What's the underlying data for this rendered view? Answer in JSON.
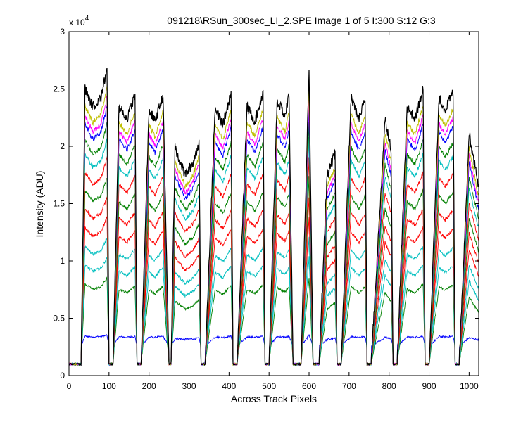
{
  "chart_data": {
    "type": "line",
    "title": "091218\\RSun_300sec_LI_2.SPE  Image 1 of 5  I:300  S:12  G:3",
    "xlabel": "Across Track Pixels",
    "ylabel": "Intensity (ADU)",
    "exponent_label": "x 10",
    "exponent_power": "4",
    "xlim": [
      0,
      1024
    ],
    "ylim": [
      0,
      30000
    ],
    "x_ticks": [
      0,
      100,
      200,
      300,
      400,
      500,
      600,
      700,
      800,
      900,
      1000
    ],
    "y_ticks": [
      0,
      5000,
      10000,
      15000,
      20000,
      25000,
      30000
    ],
    "x_tick_labels": [
      "0",
      "100",
      "200",
      "300",
      "400",
      "500",
      "600",
      "700",
      "800",
      "900",
      "1000"
    ],
    "y_tick_labels": [
      "0",
      "0.5",
      "1",
      "1.5",
      "2",
      "2.5",
      "3"
    ],
    "grid": false,
    "legend": "none",
    "baseline": 1000,
    "envelope": {
      "x": [
        0,
        30,
        40,
        60,
        80,
        95,
        100,
        110,
        125,
        145,
        165,
        170,
        180,
        200,
        215,
        235,
        250,
        255,
        265,
        290,
        310,
        325,
        330,
        340,
        365,
        385,
        405,
        410,
        420,
        445,
        465,
        485,
        490,
        500,
        520,
        540,
        550,
        560,
        580,
        600,
        610,
        625,
        645,
        665,
        670,
        680,
        705,
        725,
        740,
        745,
        755,
        790,
        805,
        810,
        820,
        845,
        865,
        885,
        890,
        900,
        925,
        940,
        960,
        965,
        975,
        1000,
        1024
      ],
      "value": [
        0,
        0,
        0.93,
        0.87,
        0.9,
        1,
        0,
        0,
        0.87,
        0.83,
        0.91,
        0,
        0,
        0.86,
        0.82,
        0.91,
        0,
        0,
        0.73,
        0.64,
        0.68,
        0.75,
        0,
        0,
        0.86,
        0.81,
        0.92,
        0,
        0,
        0.87,
        0.82,
        0.92,
        0,
        0,
        0.89,
        0.84,
        0.91,
        0,
        0,
        1,
        0,
        0,
        0.64,
        0.71,
        0,
        0,
        0.9,
        0.83,
        0.9,
        0,
        0,
        0.83,
        0.73,
        0,
        0,
        0.87,
        0.83,
        0.93,
        0,
        0,
        0.9,
        0.86,
        0.92,
        0,
        0,
        0.78,
        0.6
      ]
    },
    "series": [
      {
        "color": "#000000",
        "peak": 26800,
        "noise": 900
      },
      {
        "color": "#bfbf00",
        "peak": 25200,
        "noise": 500
      },
      {
        "color": "#ff00ff",
        "peak": 24300,
        "noise": 450
      },
      {
        "color": "#0000ff",
        "peak": 23500,
        "noise": 450
      },
      {
        "color": "#008000",
        "peak": 22000,
        "noise": 400
      },
      {
        "color": "#00bfbf",
        "peak": 20700,
        "noise": 350
      },
      {
        "color": "#ff0000",
        "peak": 19000,
        "noise": 300
      },
      {
        "color": "#008000",
        "peak": 17300,
        "noise": 300
      },
      {
        "color": "#ff0000",
        "peak": 15600,
        "noise": 300
      },
      {
        "color": "#ff0000",
        "peak": 13800,
        "noise": 250
      },
      {
        "color": "#00bfbf",
        "peak": 12000,
        "noise": 250
      },
      {
        "color": "#00bfbf",
        "peak": 10300,
        "noise": 250
      },
      {
        "color": "#008000",
        "peak": 8500,
        "noise": 200
      },
      {
        "color": "#0000ff",
        "peak": 3500,
        "noise": 150,
        "flat": true
      }
    ]
  }
}
